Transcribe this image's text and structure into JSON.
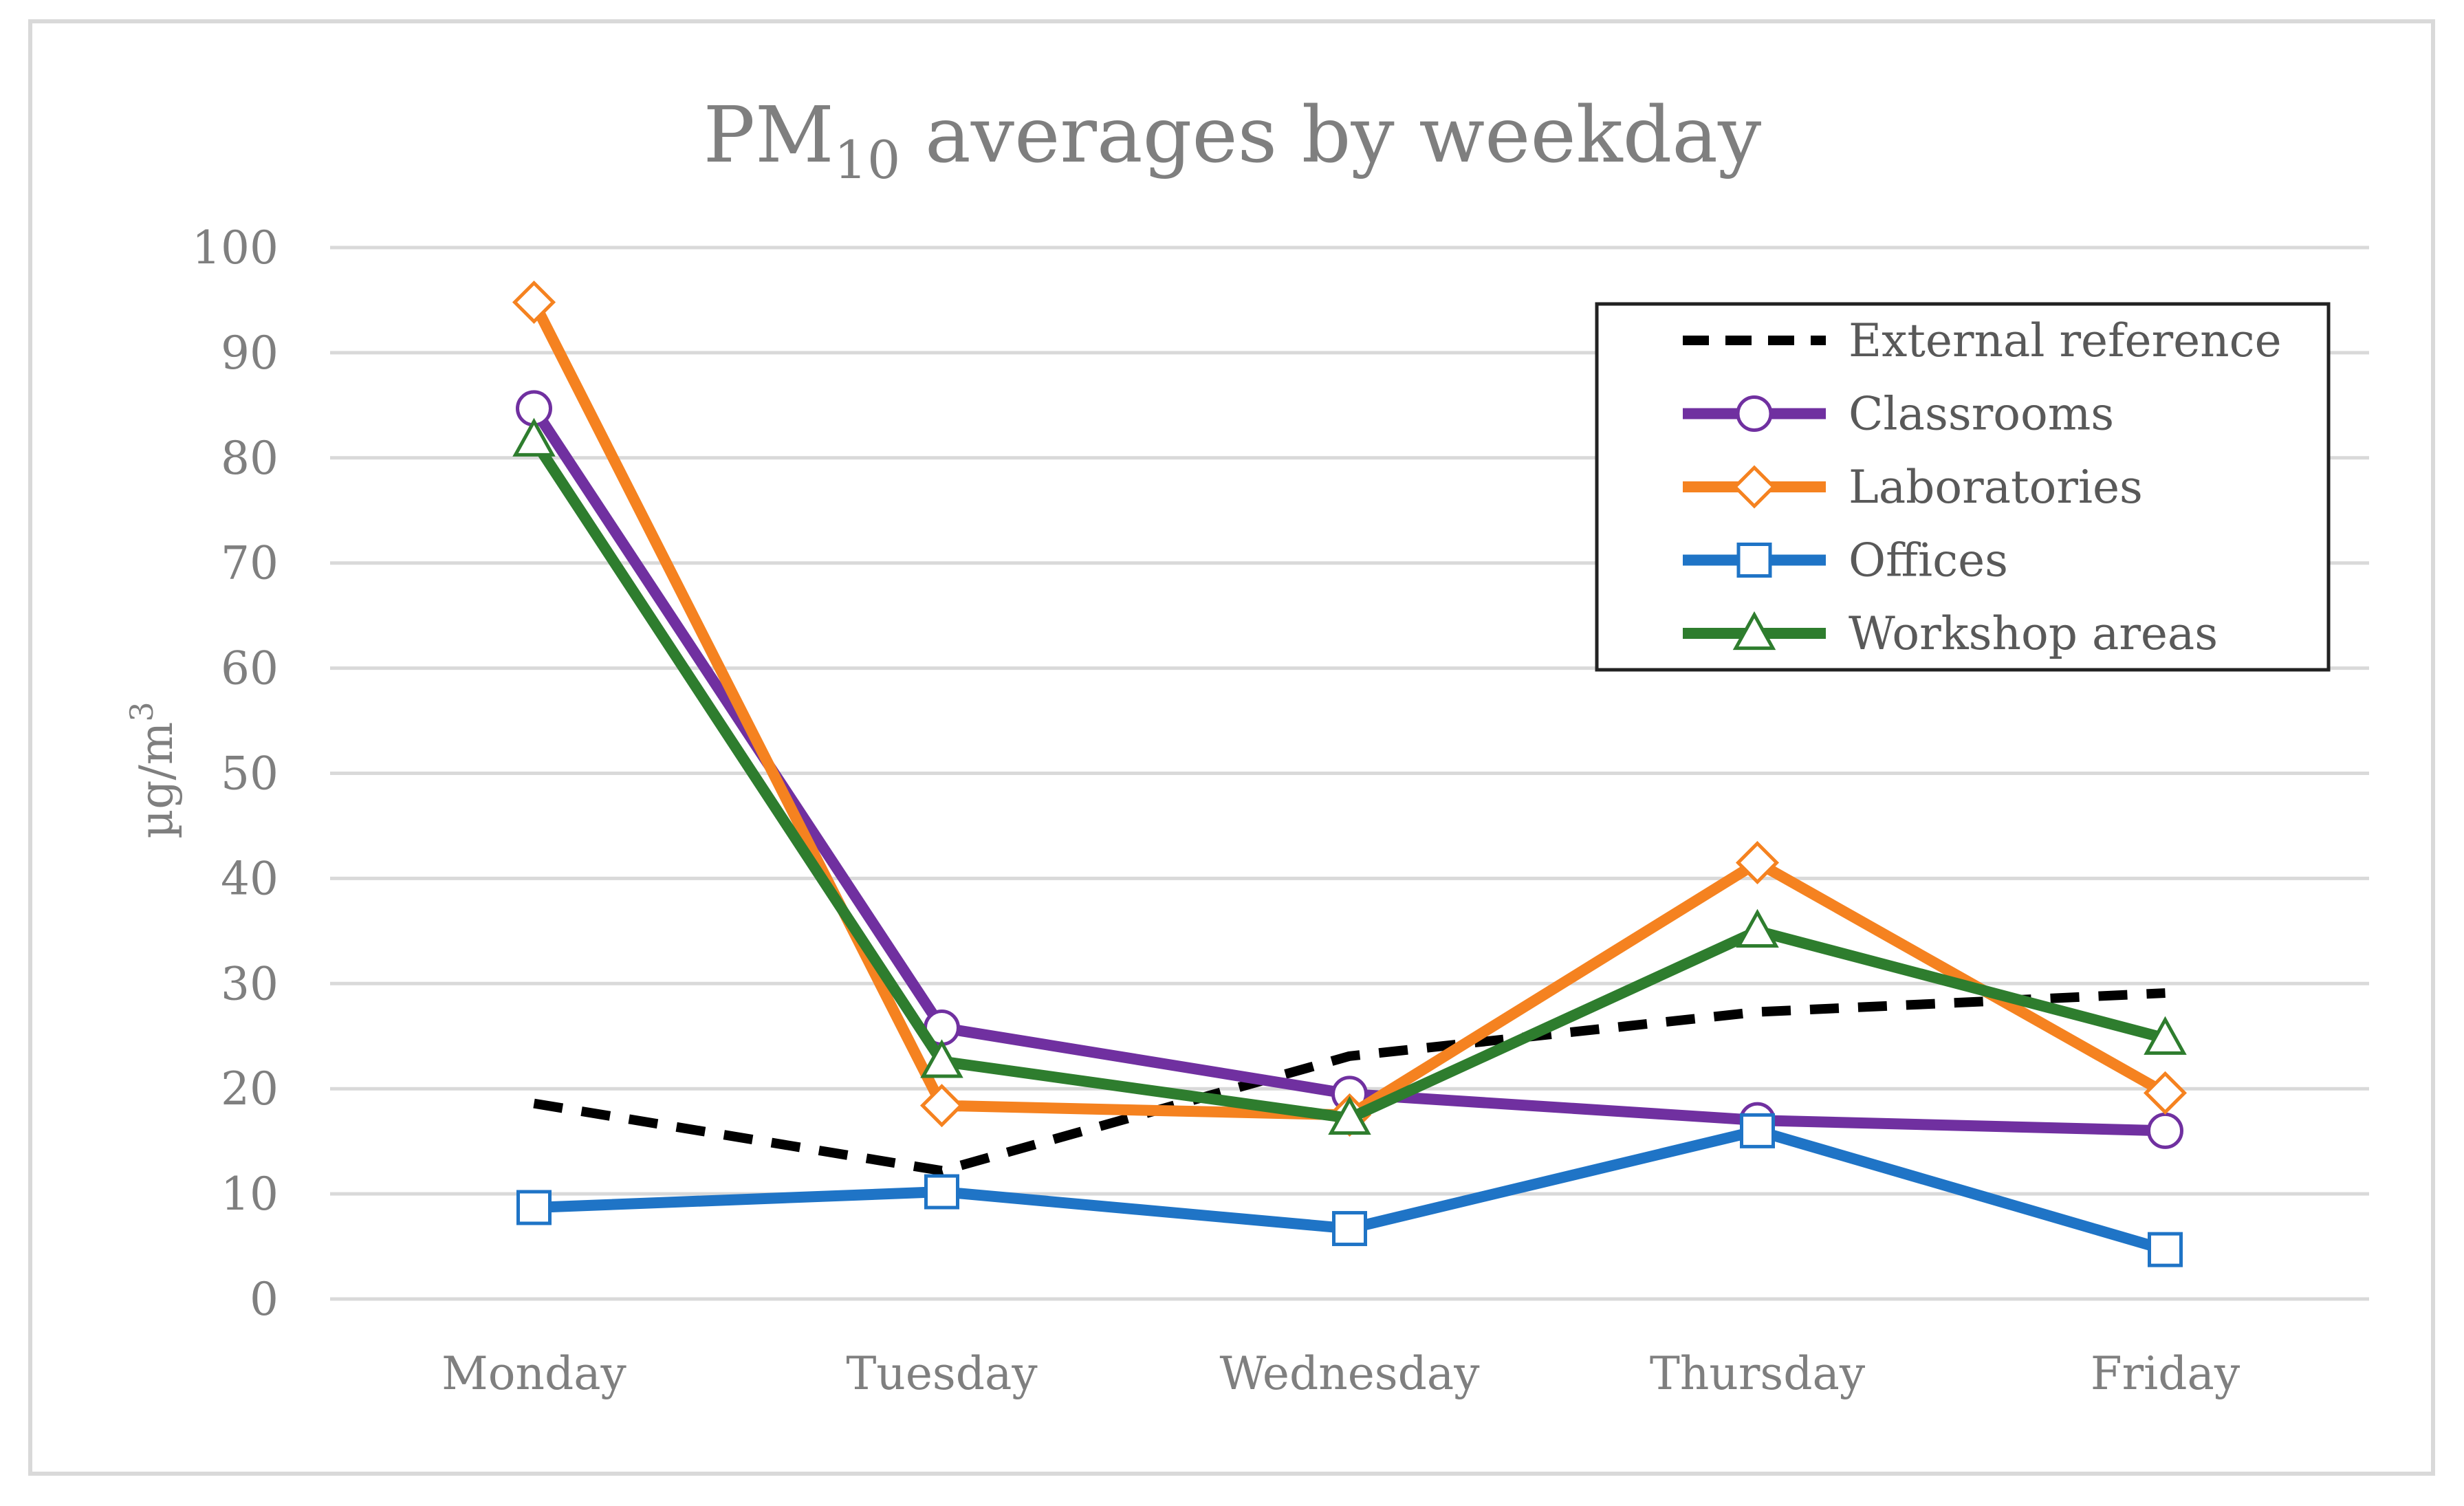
{
  "chart_data": {
    "type": "line",
    "title": {
      "main": "PM",
      "subscript": "10",
      "rest": " averages by weekday"
    },
    "xlabel": "",
    "ylabel": {
      "main": "µg/m",
      "superscript": "3"
    },
    "categories": [
      "Monday",
      "Tuesday",
      "Wednesday",
      "Thursday",
      "Friday"
    ],
    "ylim": [
      0,
      100
    ],
    "yticks": [
      0,
      10,
      20,
      30,
      40,
      50,
      60,
      70,
      80,
      90,
      100
    ],
    "grid": true,
    "legend_position": "top-right",
    "series": [
      {
        "name": "External reference",
        "color": "#000000",
        "dash": true,
        "marker": "none",
        "values": [
          18.6,
          12.2,
          23.1,
          27.3,
          29.1
        ]
      },
      {
        "name": "Classrooms",
        "color": "#7030a0",
        "dash": false,
        "marker": "circle",
        "values": [
          84.7,
          25.8,
          19.5,
          17.0,
          16.0
        ]
      },
      {
        "name": "Laboratories",
        "color": "#f58220",
        "dash": false,
        "marker": "diamond",
        "values": [
          94.8,
          18.4,
          17.5,
          41.5,
          19.6
        ]
      },
      {
        "name": "Offices",
        "color": "#1f74c6",
        "dash": false,
        "marker": "square",
        "values": [
          8.7,
          10.2,
          6.7,
          16.0,
          4.7
        ]
      },
      {
        "name": "Workshop areas",
        "color": "#2e7d2e",
        "dash": false,
        "marker": "triangle",
        "values": [
          81.7,
          22.6,
          17.2,
          35.0,
          24.8
        ]
      }
    ]
  }
}
